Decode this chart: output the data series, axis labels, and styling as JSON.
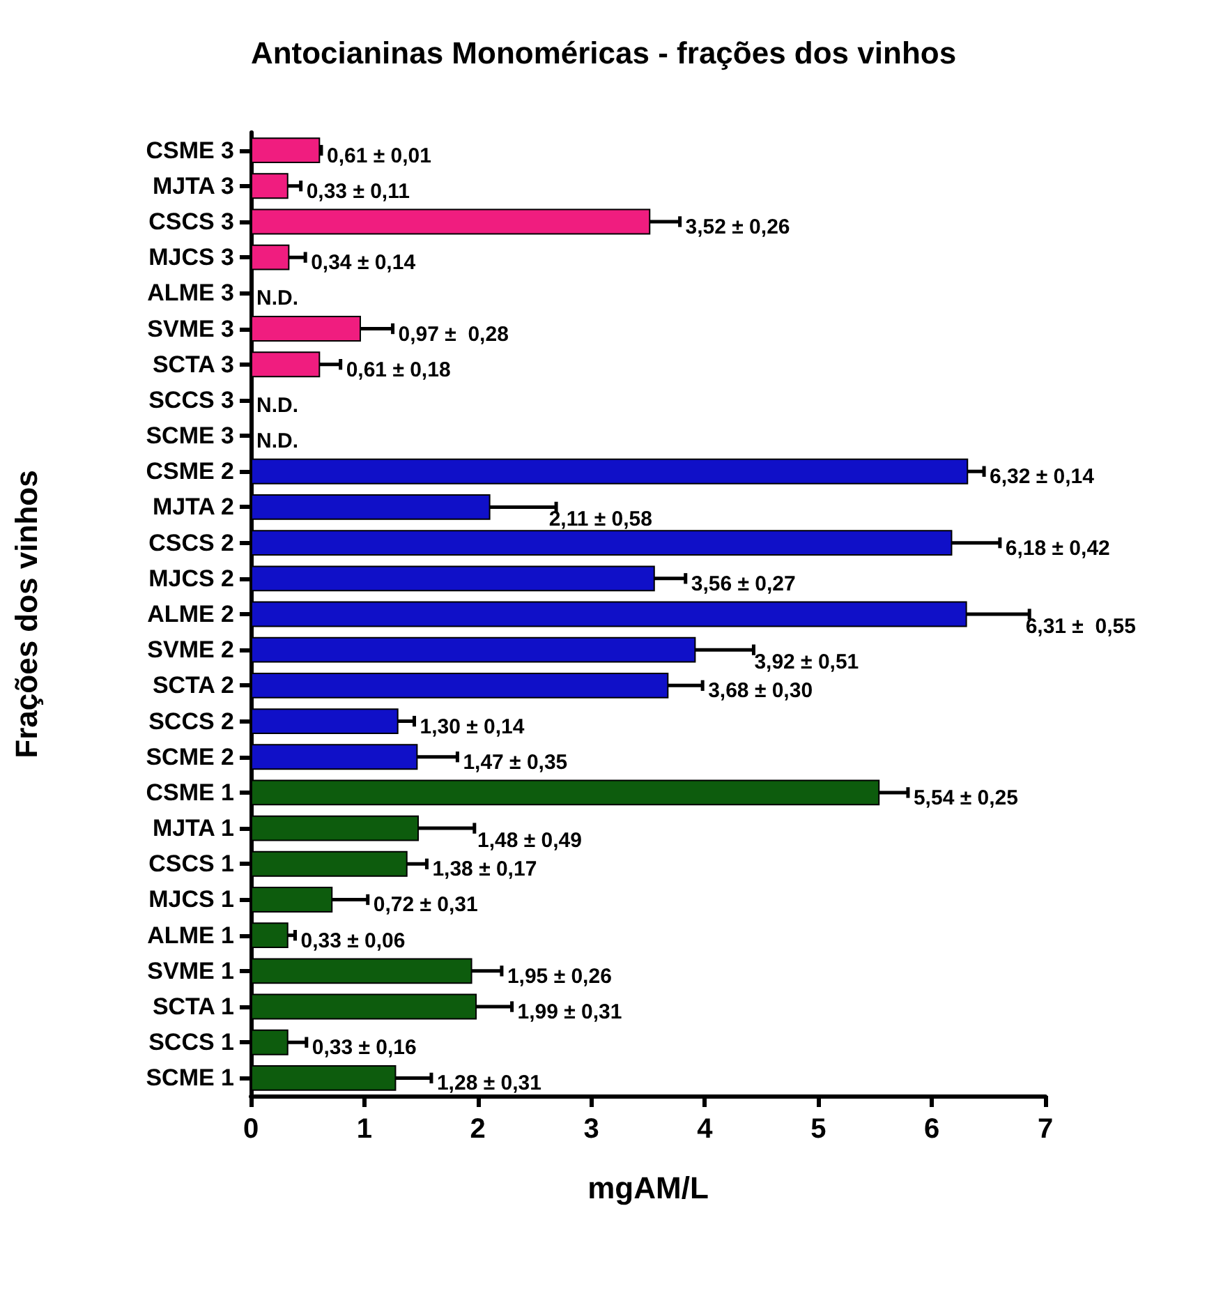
{
  "chart_data": {
    "type": "bar",
    "orientation": "horizontal",
    "title": "Antocianinas Monoméricas - frações dos vinhos",
    "xlabel": "mgAM/L",
    "ylabel": "Frações dos vinhos",
    "categories": [
      "CSME 3",
      "MJTA 3",
      "CSCS 3",
      "MJCS 3",
      "ALME 3",
      "SVME 3",
      "SCTA 3",
      "SCCS 3",
      "SCME 3",
      "CSME 2",
      "MJTA 2",
      "CSCS 2",
      "MJCS 2",
      "ALME 2",
      "SVME 2",
      "SCTA 2",
      "SCCS 2",
      "SCME 2",
      "CSME 1",
      "MJTA 1",
      "CSCS 1",
      "MJCS 1",
      "ALME 1",
      "SVME 1",
      "SCTA 1",
      "SCCS 1",
      "SCME 1"
    ],
    "values": [
      0.61,
      0.33,
      3.52,
      0.34,
      null,
      0.97,
      0.61,
      null,
      null,
      6.32,
      2.11,
      6.18,
      3.56,
      6.31,
      3.92,
      3.68,
      1.3,
      1.47,
      5.54,
      1.48,
      1.38,
      0.72,
      0.33,
      1.95,
      1.99,
      0.33,
      1.28
    ],
    "errors": [
      0.01,
      0.11,
      0.26,
      0.14,
      null,
      0.28,
      0.18,
      null,
      null,
      0.14,
      0.58,
      0.42,
      0.27,
      0.55,
      0.51,
      0.3,
      0.14,
      0.35,
      0.25,
      0.49,
      0.17,
      0.31,
      0.06,
      0.26,
      0.31,
      0.16,
      0.31
    ],
    "value_labels": [
      "0,61 ± 0,01",
      "0,33 ± 0,11",
      "3,52 ± 0,26",
      "0,34 ± 0,14",
      "N.D.",
      "0,97 ±  0,28",
      "0,61 ± 0,18",
      "N.D.",
      "N.D.",
      "6,32 ± 0,14",
      "2,11 ± 0,58",
      "6,18 ± 0,42",
      "3,56 ± 0,27",
      "6,31 ±  0,55",
      "3,92 ± 0,51",
      "3,68 ± 0,30",
      "1,30 ± 0,14",
      "1,47 ± 0,35",
      "5,54 ± 0,25",
      "1,48 ± 0,49",
      "1,38 ± 0,17",
      "0,72 ± 0,31",
      "0,33 ± 0,06",
      "1,95 ± 0,26",
      "1,99 ± 0,31",
      "0,33 ± 0,16",
      "1,28 ± 0,31"
    ],
    "colors": [
      "#f01d7f",
      "#f01d7f",
      "#f01d7f",
      "#f01d7f",
      "#f01d7f",
      "#f01d7f",
      "#f01d7f",
      "#f01d7f",
      "#f01d7f",
      "#1010c8",
      "#1010c8",
      "#1010c8",
      "#1010c8",
      "#1010c8",
      "#1010c8",
      "#1010c8",
      "#1010c8",
      "#1010c8",
      "#0d5c0d",
      "#0d5c0d",
      "#0d5c0d",
      "#0d5c0d",
      "#0d5c0d",
      "#0d5c0d",
      "#0d5c0d",
      "#0d5c0d",
      "#0d5c0d"
    ],
    "xlim": [
      0,
      7
    ],
    "xticks": [
      0,
      1,
      2,
      3,
      4,
      5,
      6,
      7
    ]
  }
}
